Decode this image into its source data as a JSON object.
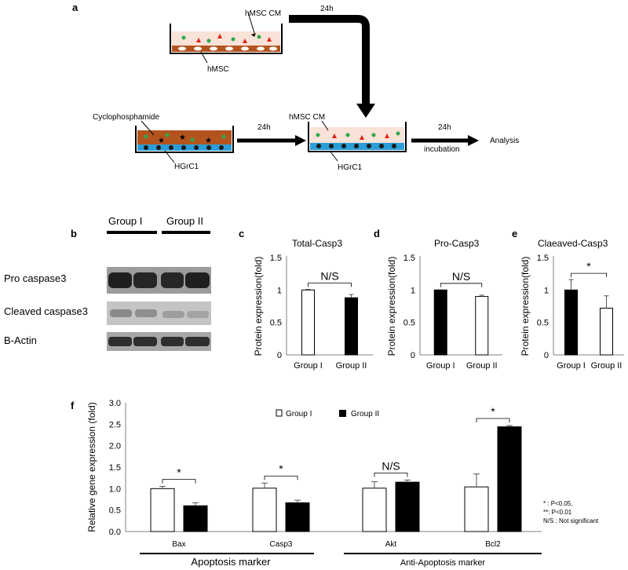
{
  "figure": {
    "panel_labels": {
      "a": "a",
      "b": "b",
      "c": "c",
      "d": "d",
      "e": "e",
      "f": "f"
    }
  },
  "schematic": {
    "top_dish_label": "hMSC",
    "top_cm_label": "hMSC CM",
    "time_1": "24h",
    "cyclophosphamide_label": "Cyclophosphamide",
    "left_cells_label": "HGrC1",
    "time_2": "24h",
    "mid_cm_label": "hMSC CM",
    "mid_cells_label": "HGrC1",
    "time_3": "24h",
    "incubation_label": "incubation",
    "analysis_label": "Analysis"
  },
  "western_blot": {
    "groups": [
      "Group I",
      "Group II"
    ],
    "rows": [
      "Pro caspase3",
      "Cleaved caspase3",
      "B-Actin"
    ]
  },
  "chart_data": [
    {
      "id": "c",
      "type": "bar",
      "title": "Total-Casp3",
      "ylabel": "Protein expression(fold)",
      "categories": [
        "Group I",
        "Group II"
      ],
      "values": [
        1.0,
        0.88
      ],
      "errors": [
        0.01,
        0.05
      ],
      "fill": [
        "#ffffff",
        "#000000"
      ],
      "ylim": [
        0,
        1.5
      ],
      "yticks": [
        "0",
        "0.5",
        "1",
        "1.5"
      ],
      "significance": "N/S"
    },
    {
      "id": "d",
      "type": "bar",
      "title": "Pro-Casp3",
      "ylabel": "Protein expression(fold)",
      "categories": [
        "Group I",
        "Group II"
      ],
      "values": [
        1.0,
        0.9
      ],
      "errors": [
        0.005,
        0.02
      ],
      "fill": [
        "#000000",
        "#ffffff"
      ],
      "ylim": [
        0,
        1.5
      ],
      "yticks": [
        "0",
        "0.5",
        "1",
        "1.5"
      ],
      "significance": "N/S"
    },
    {
      "id": "e",
      "type": "bar",
      "title": "Claeaved-Casp3",
      "ylabel": "Protein expression(fold)",
      "categories": [
        "Group I",
        "Group II"
      ],
      "values": [
        1.0,
        0.72
      ],
      "errors": [
        0.16,
        0.19
      ],
      "fill": [
        "#000000",
        "#ffffff"
      ],
      "ylim": [
        0,
        1.5
      ],
      "yticks": [
        "0",
        "0.5",
        "1",
        "1.5"
      ],
      "significance": "*"
    },
    {
      "id": "f",
      "type": "bar",
      "ylabel": "Relative gene expression (fold)",
      "categories": [
        "Bax",
        "Casp3",
        "Akt",
        "Bcl2"
      ],
      "series": [
        {
          "name": "Group I",
          "values": [
            1.0,
            1.01,
            1.01,
            1.04
          ],
          "errors": [
            0.05,
            0.12,
            0.15,
            0.3
          ],
          "fill": "#ffffff"
        },
        {
          "name": "Group II",
          "values": [
            0.6,
            0.67,
            1.15,
            2.44
          ],
          "errors": [
            0.07,
            0.06,
            0.05,
            0.03
          ],
          "fill": "#000000"
        }
      ],
      "significance": [
        "*",
        "*",
        "N/S",
        "*"
      ],
      "ylim": [
        0,
        3.0
      ],
      "yticks": [
        "0.0",
        "0.5",
        "1.0",
        "1.5",
        "2.0",
        "2.5",
        "3.0"
      ],
      "marker_groups": [
        "Apoptosis marker",
        "Anti-Apoptosis marker"
      ],
      "footnotes": [
        "* : P<0.05,",
        "**: P<0.01",
        "N/S : Not significant"
      ]
    }
  ]
}
